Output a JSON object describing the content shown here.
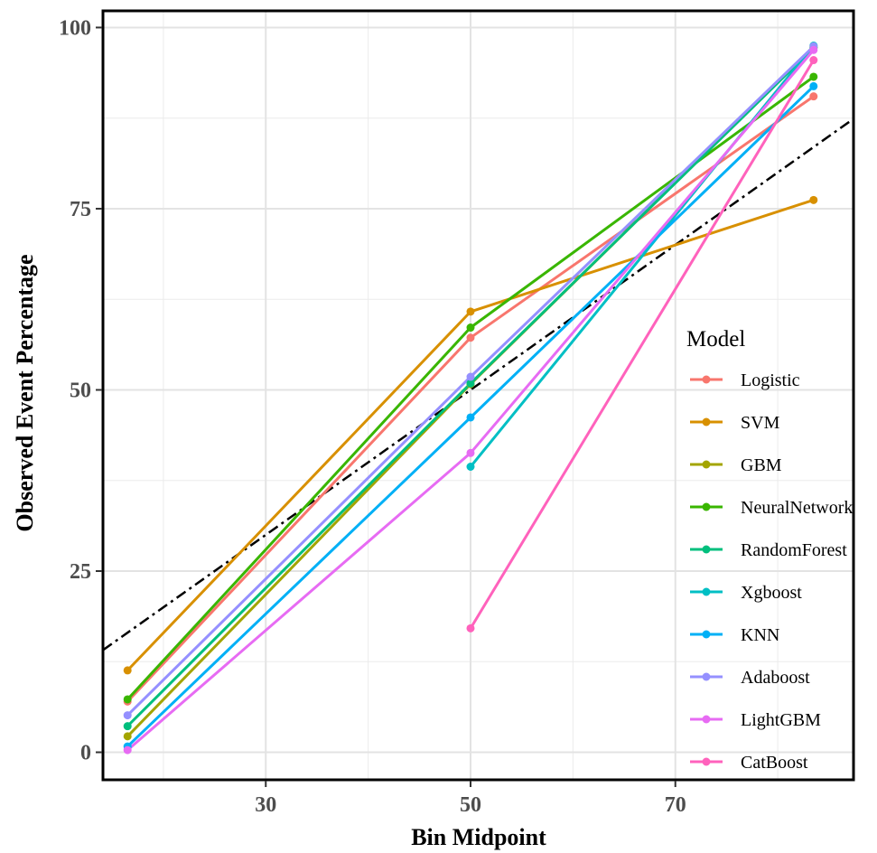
{
  "chart_data": {
    "type": "line",
    "xlabel": "Bin Midpoint",
    "ylabel": "Observed Event Percentage",
    "xlim": [
      14.1,
      87.4
    ],
    "ylim": [
      -3.8,
      102.3
    ],
    "x_ticks": [
      30,
      50,
      70
    ],
    "x_minor_ticks": [
      20,
      40,
      60,
      80
    ],
    "y_ticks": [
      0,
      25,
      50,
      75,
      100
    ],
    "y_minor_ticks": [
      12.5,
      37.5,
      62.5,
      87.5
    ],
    "grid": true,
    "reference_line": {
      "style": "dot-dash",
      "color": "#000000",
      "slope": 1,
      "intercept": 0
    },
    "legend": {
      "title": "Model",
      "position": "inside-right"
    },
    "series": [
      {
        "name": "Logistic",
        "color": "#F8766D",
        "x": [
          16.5,
          50,
          83.5
        ],
        "y": [
          7.0,
          57.2,
          90.5
        ]
      },
      {
        "name": "SVM",
        "color": "#D89000",
        "x": [
          16.5,
          50,
          83.5
        ],
        "y": [
          11.3,
          60.8,
          76.2
        ]
      },
      {
        "name": "GBM",
        "color": "#A3A500",
        "x": [
          16.5,
          50,
          83.5
        ],
        "y": [
          2.2,
          50.8,
          97.3
        ]
      },
      {
        "name": "NeuralNetwork",
        "color": "#39B600",
        "x": [
          16.5,
          50,
          83.5
        ],
        "y": [
          7.3,
          58.6,
          93.2
        ]
      },
      {
        "name": "RandomForest",
        "color": "#00BF7D",
        "x": [
          16.5,
          50,
          83.5
        ],
        "y": [
          3.6,
          50.9,
          97.2
        ]
      },
      {
        "name": "Xgboost",
        "color": "#00BFC4",
        "x": [
          50,
          83.5
        ],
        "y": [
          39.4,
          97.5
        ]
      },
      {
        "name": "KNN",
        "color": "#00B0F6",
        "x": [
          16.5,
          50,
          83.5
        ],
        "y": [
          0.8,
          46.2,
          91.9
        ]
      },
      {
        "name": "Adaboost",
        "color": "#9590FF",
        "x": [
          16.5,
          50,
          83.5
        ],
        "y": [
          5.1,
          51.8,
          97.4
        ]
      },
      {
        "name": "LightGBM",
        "color": "#E76BF3",
        "x": [
          16.5,
          50,
          83.5
        ],
        "y": [
          0.3,
          41.3,
          96.9
        ]
      },
      {
        "name": "CatBoost",
        "color": "#FF62BC",
        "x": [
          50,
          83.5
        ],
        "y": [
          17.1,
          95.5
        ]
      }
    ]
  }
}
